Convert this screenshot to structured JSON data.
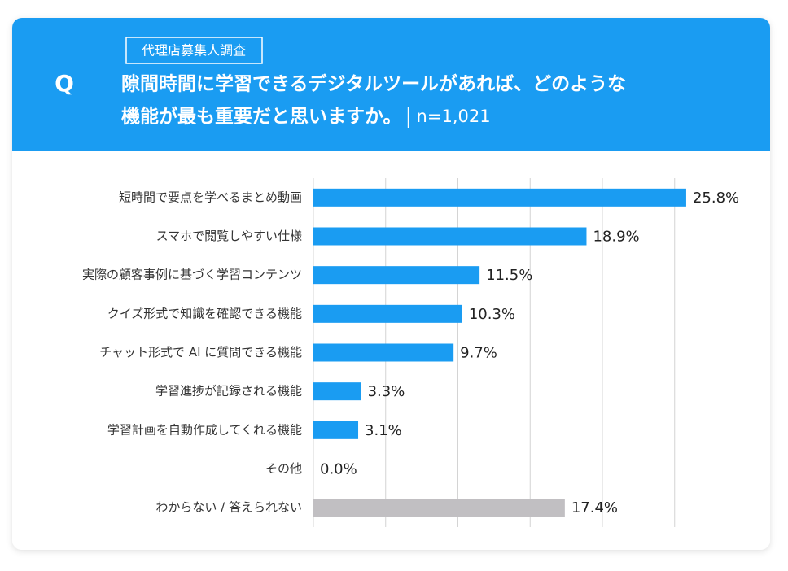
{
  "chart_data": {
    "type": "bar",
    "orientation": "horizontal",
    "tag": "代理店募集人調査",
    "q_label": "Q",
    "title_lines": [
      "隙間時間に学習できるデジタルツールがあれば、どのような",
      "機能が最も重要だと思いますか。"
    ],
    "sample": "n=1,021",
    "categories": [
      "短時間で要点を学べるまとめ動画",
      "スマホで閲覧しやすい仕様",
      "実際の顧客事例に基づく学習コンテンツ",
      "クイズ形式で知識を確認できる機能",
      "チャット形式で AI に質問できる機能",
      "学習進捗が記録される機能",
      "学習計画を自動作成してくれる機能",
      "その他",
      "わからない / 答えられない"
    ],
    "values": [
      25.8,
      18.9,
      11.5,
      10.3,
      9.7,
      3.3,
      3.1,
      0.0,
      17.4
    ],
    "value_labels": [
      "25.8%",
      "18.9%",
      "11.5%",
      "10.3%",
      "9.7%",
      "3.3%",
      "3.1%",
      "0.0%",
      "17.4%"
    ],
    "colors": [
      "#1a9cf2",
      "#1a9cf2",
      "#1a9cf2",
      "#1a9cf2",
      "#1a9cf2",
      "#1a9cf2",
      "#1a9cf2",
      "#1a9cf2",
      "#c1bfc2"
    ],
    "xlim": [
      0,
      30
    ],
    "xticks": [
      0,
      5,
      10,
      15,
      20,
      25
    ],
    "grid": true
  }
}
